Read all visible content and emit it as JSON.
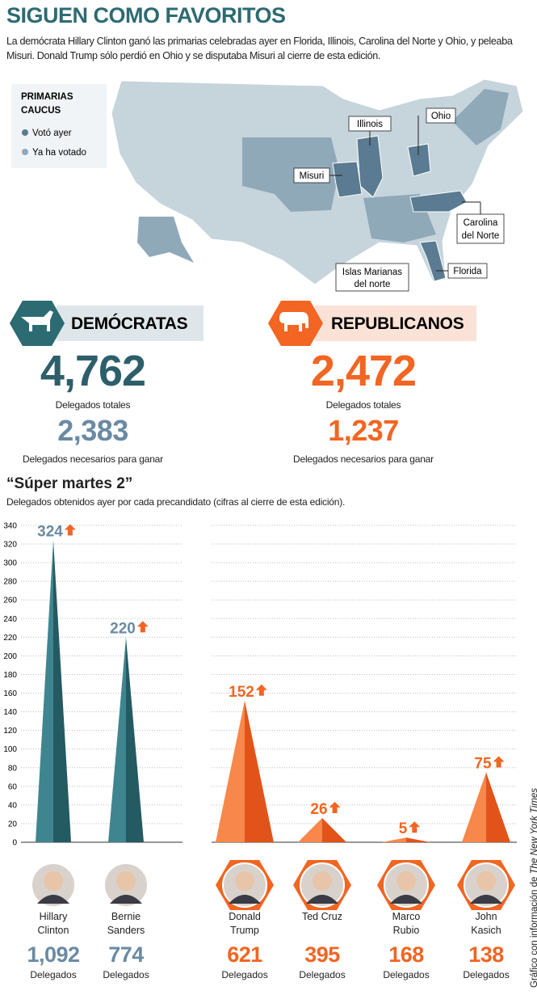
{
  "header": {
    "title": "SIGUEN COMO FAVORITOS",
    "subtitle": "La demócrata Hillary Clinton ganó las primarias celebradas ayer en Florida, Illinois, Carolina del Norte y Ohio, y peleaba Misuri. Donald Trump sólo perdió en Ohio y se disputaba Misuri al cierre de esta edición."
  },
  "map": {
    "legend": {
      "title_1": "PRIMARIAS",
      "title_2": "CAUCUS",
      "items": [
        "Votó ayer",
        "Ya ha votado"
      ]
    },
    "labels": {
      "illinois": "Illinois",
      "ohio": "Ohio",
      "misuri": "Misuri",
      "carolina_1": "Carolina",
      "carolina_2": "del Norte",
      "florida": "Florida",
      "marianas_1": "Islas Marianas",
      "marianas_2": "del norte"
    }
  },
  "parties": [
    {
      "name": "DEMÓCRATAS",
      "total": "4,762",
      "total_label": "Delegados totales",
      "needed": "2,383",
      "needed_label": "Delegados necesarios para ganar"
    },
    {
      "name": "REPUBLICANOS",
      "total": "2,472",
      "total_label": "Delegados totales",
      "needed": "1,237",
      "needed_label": "Delegados necesarios para ganar"
    }
  ],
  "chart_data": {
    "type": "spike",
    "title": "“Súper martes 2”",
    "subtitle": "Delegados obtenidos ayer por cada precandidato (cifras al cierre de esta edición).",
    "categories": [
      "Hillary Clinton",
      "Bernie Sanders",
      "Donald Trump",
      "Ted Cruz",
      "Marco Rubio",
      "John Kasich"
    ],
    "values": [
      324,
      220,
      152,
      26,
      5,
      75
    ],
    "colors": [
      "#2d6b72",
      "#2d6b72",
      "#f26522",
      "#f26522",
      "#f26522",
      "#f26522"
    ],
    "ylim": [
      0,
      340
    ],
    "yticks": [
      0,
      20,
      40,
      60,
      80,
      100,
      120,
      140,
      160,
      180,
      200,
      220,
      240,
      260,
      280,
      300,
      320,
      340
    ],
    "grid": true,
    "totals": {
      "values": [
        1092,
        774,
        621,
        395,
        168,
        138
      ],
      "value_labels": [
        "1,092",
        "774",
        "621",
        "395",
        "168",
        "138"
      ],
      "label": "Delegados"
    }
  },
  "source": {
    "prefix": "Gráfico con información de",
    "name": "The New York Times"
  }
}
